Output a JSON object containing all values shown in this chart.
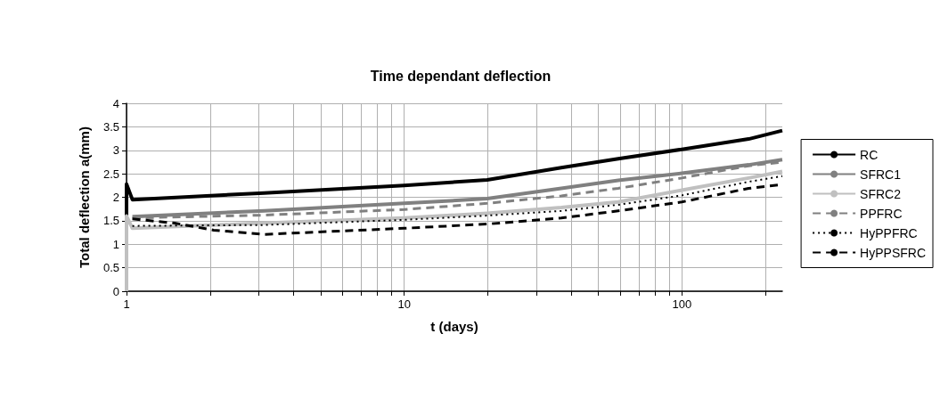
{
  "chart_data": {
    "type": "line",
    "title": "Time dependant deflection",
    "xlabel": "t (days)",
    "ylabel": "Total deflection a(mm)",
    "log": "x",
    "grid": true,
    "legend": "right",
    "marker": "none",
    "xlim": [
      1,
      230
    ],
    "xticks": [
      1,
      {
        "value": 2,
        "label": null
      },
      {
        "value": 3,
        "label": null
      },
      {
        "value": 4,
        "label": null
      },
      {
        "value": 5,
        "label": null
      },
      {
        "value": 6,
        "label": null
      },
      {
        "value": 7,
        "label": null
      },
      {
        "value": 8,
        "label": null
      },
      {
        "value": 9,
        "label": null
      },
      10,
      {
        "value": 20,
        "label": null
      },
      {
        "value": 30,
        "label": null
      },
      {
        "value": 40,
        "label": null
      },
      {
        "value": 50,
        "label": null
      },
      {
        "value": 60,
        "label": null
      },
      {
        "value": 70,
        "label": null
      },
      {
        "value": 80,
        "label": null
      },
      {
        "value": 90,
        "label": null
      },
      100,
      {
        "value": 200,
        "label": null
      }
    ],
    "ylim": [
      0,
      4
    ],
    "yticks": [
      0,
      0.5,
      1,
      1.5,
      2,
      2.5,
      3,
      3.5,
      4
    ],
    "series": [
      {
        "name": "RC",
        "color": "#000000",
        "line_style": "solid",
        "x": [
          1,
          1,
          1.05,
          3.13,
          10,
          19.9,
          36.8,
          59,
          100,
          174,
          230
        ],
        "values": [
          0,
          2.28,
          1.95,
          2.09,
          2.25,
          2.37,
          2.63,
          2.82,
          3.02,
          3.24,
          3.42
        ]
      },
      {
        "name": "SFRC1",
        "color": "#808080",
        "line_style": "solid",
        "x": [
          1.05,
          3.13,
          10,
          19.9,
          36.8,
          59,
          100,
          174,
          230
        ],
        "values": [
          1.59,
          1.71,
          1.87,
          1.97,
          2.19,
          2.36,
          2.51,
          2.69,
          2.8
        ]
      },
      {
        "name": "SFRC2",
        "color": "#c0c0c0",
        "line_style": "solid",
        "x": [
          1,
          1,
          1.05,
          3.13,
          10,
          19.9,
          36.8,
          59,
          100,
          174,
          230
        ],
        "values": [
          0,
          1.6,
          1.34,
          1.45,
          1.56,
          1.66,
          1.78,
          1.9,
          2.15,
          2.41,
          2.55
        ]
      },
      {
        "name": "PPFRC",
        "color": "#808080",
        "line_style": "dashed",
        "x": [
          1.05,
          3.13,
          10,
          19.9,
          36.8,
          59,
          100,
          174,
          230
        ],
        "values": [
          1.56,
          1.62,
          1.74,
          1.87,
          2.03,
          2.19,
          2.41,
          2.67,
          2.75
        ]
      },
      {
        "name": "HyPPFRC",
        "color": "#000000",
        "line_style": "dotted",
        "x": [
          1.05,
          3.13,
          10,
          19.9,
          36.8,
          59,
          100,
          174,
          230
        ],
        "values": [
          1.39,
          1.41,
          1.52,
          1.61,
          1.71,
          1.84,
          2.04,
          2.33,
          2.45
        ]
      },
      {
        "name": "HyPPSFRC",
        "color": "#000000",
        "line_style": "dashed",
        "x": [
          1.05,
          1.49,
          2.06,
          3.13,
          10,
          19.9,
          36.8,
          59,
          100,
          174,
          230
        ],
        "values": [
          1.54,
          1.45,
          1.3,
          1.21,
          1.34,
          1.43,
          1.56,
          1.71,
          1.9,
          2.19,
          2.27
        ]
      }
    ]
  }
}
